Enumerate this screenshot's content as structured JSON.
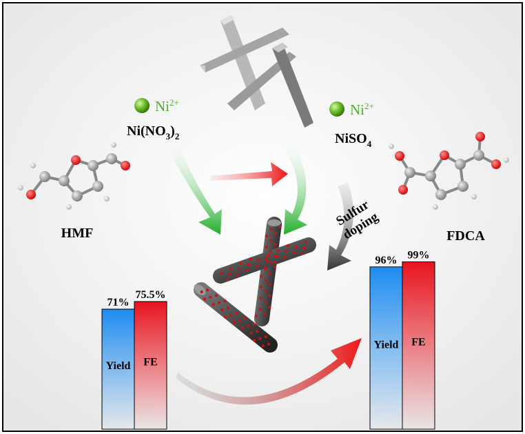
{
  "left_ion": {
    "symbol": "Ni",
    "charge": "2+"
  },
  "right_ion": {
    "symbol": "Ni",
    "charge": "2+"
  },
  "left_salt": {
    "parts": [
      "Ni(NO",
      "3",
      ")",
      "2"
    ]
  },
  "right_salt": {
    "parts": [
      "NiSO",
      "4"
    ]
  },
  "molecules": {
    "left": "HMF",
    "right": "FDCA"
  },
  "arrow_label": [
    "Sulfur",
    "doping"
  ],
  "results": [
    {
      "bars": [
        {
          "name": "Yield",
          "value": 71,
          "value_label": "71%",
          "color": "#1e8cf0"
        },
        {
          "name": "FE",
          "value": 75.5,
          "value_label": "75.5%",
          "color": "#e8141e"
        }
      ]
    },
    {
      "bars": [
        {
          "name": "Yield",
          "value": 96,
          "value_label": "96%",
          "color": "#1e8cf0"
        },
        {
          "name": "FE",
          "value": 99,
          "value_label": "99%",
          "color": "#e8141e"
        }
      ]
    }
  ]
}
